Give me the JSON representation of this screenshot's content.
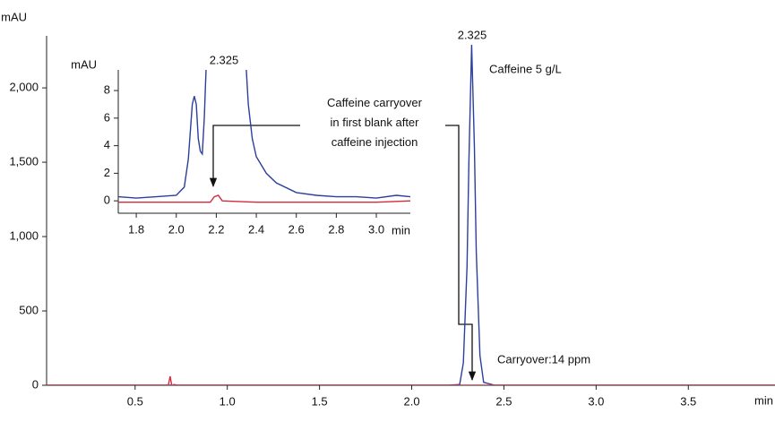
{
  "chart_data": [
    {
      "type": "line",
      "xlabel": "min",
      "ylabel": "mAU",
      "xlim": [
        0.02,
        3.97
      ],
      "ylim": [
        0,
        2350
      ],
      "xticks": [
        0.5,
        {
          "value": 1.0,
          "label": "1.0"
        },
        1.5,
        {
          "value": 2.0,
          "label": "2.0"
        },
        2.5,
        {
          "value": 3.0,
          "label": "3.0"
        },
        3.5
      ],
      "yticks": [
        0,
        500,
        {
          "value": 1000,
          "label": "1,000"
        },
        {
          "value": 1500,
          "label": "1,500"
        },
        {
          "value": 2000,
          "label": "2,000"
        }
      ],
      "series": [
        {
          "color": "#2b3f9c",
          "x": [
            0.02,
            2.2,
            2.26,
            2.28,
            2.3,
            2.31,
            2.325,
            2.34,
            2.35,
            2.37,
            2.39,
            2.45,
            3.97
          ],
          "values": [
            0,
            0,
            5,
            150,
            800,
            1500,
            2290,
            1600,
            900,
            200,
            20,
            0,
            0
          ]
        },
        {
          "color": "#d42a3c",
          "x": [
            0.02,
            0.68,
            0.69,
            0.7,
            0.71,
            0.73,
            3.97
          ],
          "values": [
            0,
            0,
            60,
            -10,
            5,
            0,
            0
          ]
        }
      ],
      "annotations": [
        "2.325",
        "Caffeine 5 g/L",
        "Carryover:14 ppm"
      ],
      "callout": [
        "Caffeine carryover",
        "in first blank after",
        "caffeine injection"
      ]
    },
    {
      "type": "line",
      "xlabel": "min",
      "ylabel": "mAU",
      "xlim": [
        1.71,
        3.17
      ],
      "ylim": [
        -0.9,
        9.5
      ],
      "xticks": [
        1.8,
        {
          "value": 2.0,
          "label": "2.0"
        },
        2.2,
        2.4,
        2.6,
        2.8,
        {
          "value": 3.0,
          "label": "3.0"
        }
      ],
      "yticks": [
        0,
        2,
        4,
        6,
        8
      ],
      "series": [
        {
          "color": "#2b3f9c",
          "x": [
            1.71,
            1.8,
            1.9,
            2.0,
            2.04,
            2.06,
            2.08,
            2.09,
            2.1,
            2.11,
            2.12,
            2.13,
            2.14,
            2.15,
            2.16,
            2.34,
            2.36,
            2.38,
            2.4,
            2.45,
            2.5,
            2.6,
            2.7,
            2.8,
            2.9,
            3.0,
            3.1,
            3.17
          ],
          "values": [
            0.3,
            0.2,
            0.3,
            0.4,
            1.0,
            3,
            7,
            7.6,
            7,
            4.5,
            3.6,
            3.4,
            6,
            10,
            12,
            12,
            7,
            4.5,
            3.2,
            2,
            1.3,
            0.6,
            0.4,
            0.3,
            0.3,
            0.2,
            0.4,
            0.3
          ]
        },
        {
          "color": "#d42a3c",
          "x": [
            1.71,
            1.9,
            2.1,
            2.17,
            2.19,
            2.21,
            2.23,
            2.4,
            2.7,
            3.0,
            3.17
          ],
          "values": [
            -0.1,
            -0.1,
            -0.1,
            -0.1,
            0.3,
            0.4,
            0,
            -0.1,
            -0.1,
            -0.1,
            0
          ]
        }
      ],
      "annotations": [
        "2.325"
      ]
    }
  ]
}
